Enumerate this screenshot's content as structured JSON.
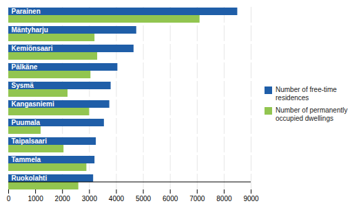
{
  "chart_data": {
    "type": "bar",
    "orientation": "horizontal",
    "categories": [
      "Parainen",
      "Mäntyharju",
      "Kemiönsaari",
      "Pälkäne",
      "Sysmä",
      "Kangasniemi",
      "Puumala",
      "Taipalsaari",
      "Tammela",
      "Ruokolahti"
    ],
    "series": [
      {
        "name": "Number of free-time\nresidences",
        "color": "#1F5EA8",
        "values": [
          8500,
          4750,
          4650,
          4050,
          3800,
          3750,
          3550,
          3250,
          3200,
          3150
        ]
      },
      {
        "name": "Number of permanently\noccupied dwellings",
        "color": "#92C550",
        "values": [
          7100,
          3200,
          3300,
          3050,
          2200,
          3000,
          1200,
          2050,
          2900,
          2600
        ]
      }
    ],
    "xlim": [
      0,
      9000
    ],
    "xticks": [
      0,
      1000,
      2000,
      3000,
      4000,
      5000,
      6000,
      7000,
      8000,
      9000
    ],
    "grid": true,
    "legend": "right",
    "tick_labels": "x"
  }
}
